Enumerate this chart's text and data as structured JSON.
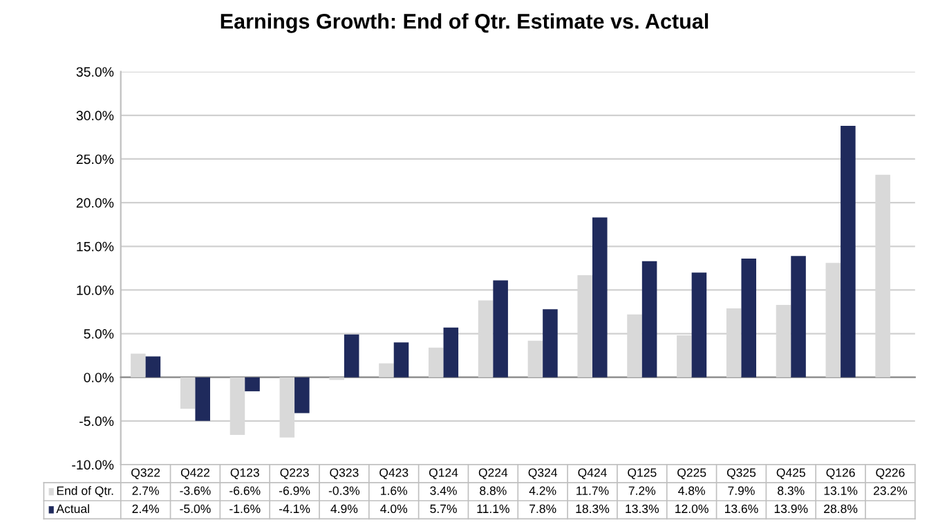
{
  "chart_data": {
    "type": "bar",
    "title": "Earnings Growth: End of Qtr. Estimate vs. Actual",
    "categories": [
      "Q322",
      "Q422",
      "Q123",
      "Q223",
      "Q323",
      "Q423",
      "Q124",
      "Q224",
      "Q324",
      "Q424",
      "Q125",
      "Q225",
      "Q325",
      "Q425",
      "Q126",
      "Q226"
    ],
    "series": [
      {
        "name": "End of Qtr.",
        "color": "#d9d9d9",
        "values": [
          2.7,
          -3.6,
          -6.6,
          -6.9,
          -0.3,
          1.6,
          3.4,
          8.8,
          4.2,
          11.7,
          7.2,
          4.8,
          7.9,
          8.3,
          13.1,
          23.2
        ],
        "value_labels": [
          "2.7%",
          "-3.6%",
          "-6.6%",
          "-6.9%",
          "-0.3%",
          "1.6%",
          "3.4%",
          "8.8%",
          "4.2%",
          "11.7%",
          "7.2%",
          "4.8%",
          "7.9%",
          "8.3%",
          "13.1%",
          "23.2%"
        ]
      },
      {
        "name": "Actual",
        "color": "#1f2a5c",
        "values": [
          2.4,
          -5.0,
          -1.6,
          -4.1,
          4.9,
          4.0,
          5.7,
          11.1,
          7.8,
          18.3,
          13.3,
          12.0,
          13.6,
          13.9,
          28.8,
          null
        ],
        "value_labels": [
          "2.4%",
          "-5.0%",
          "-1.6%",
          "-4.1%",
          "4.9%",
          "4.0%",
          "5.7%",
          "11.1%",
          "7.8%",
          "18.3%",
          "13.3%",
          "12.0%",
          "13.6%",
          "13.9%",
          "28.8%",
          null
        ]
      }
    ],
    "ylim": [
      -10,
      35
    ],
    "yticks": [
      {
        "value": -10,
        "label": "-10.0%"
      },
      {
        "value": -5,
        "label": "-5.0%"
      },
      {
        "value": 0,
        "label": "0.0%"
      },
      {
        "value": 5,
        "label": "5.0%"
      },
      {
        "value": 10,
        "label": "10.0%"
      },
      {
        "value": 15,
        "label": "15.0%"
      },
      {
        "value": 20,
        "label": "20.0%"
      },
      {
        "value": 25,
        "label": "25.0%"
      },
      {
        "value": 30,
        "label": "30.0%"
      },
      {
        "value": 35,
        "label": "35.0%"
      }
    ],
    "grid": "y",
    "legend": "bottom"
  }
}
